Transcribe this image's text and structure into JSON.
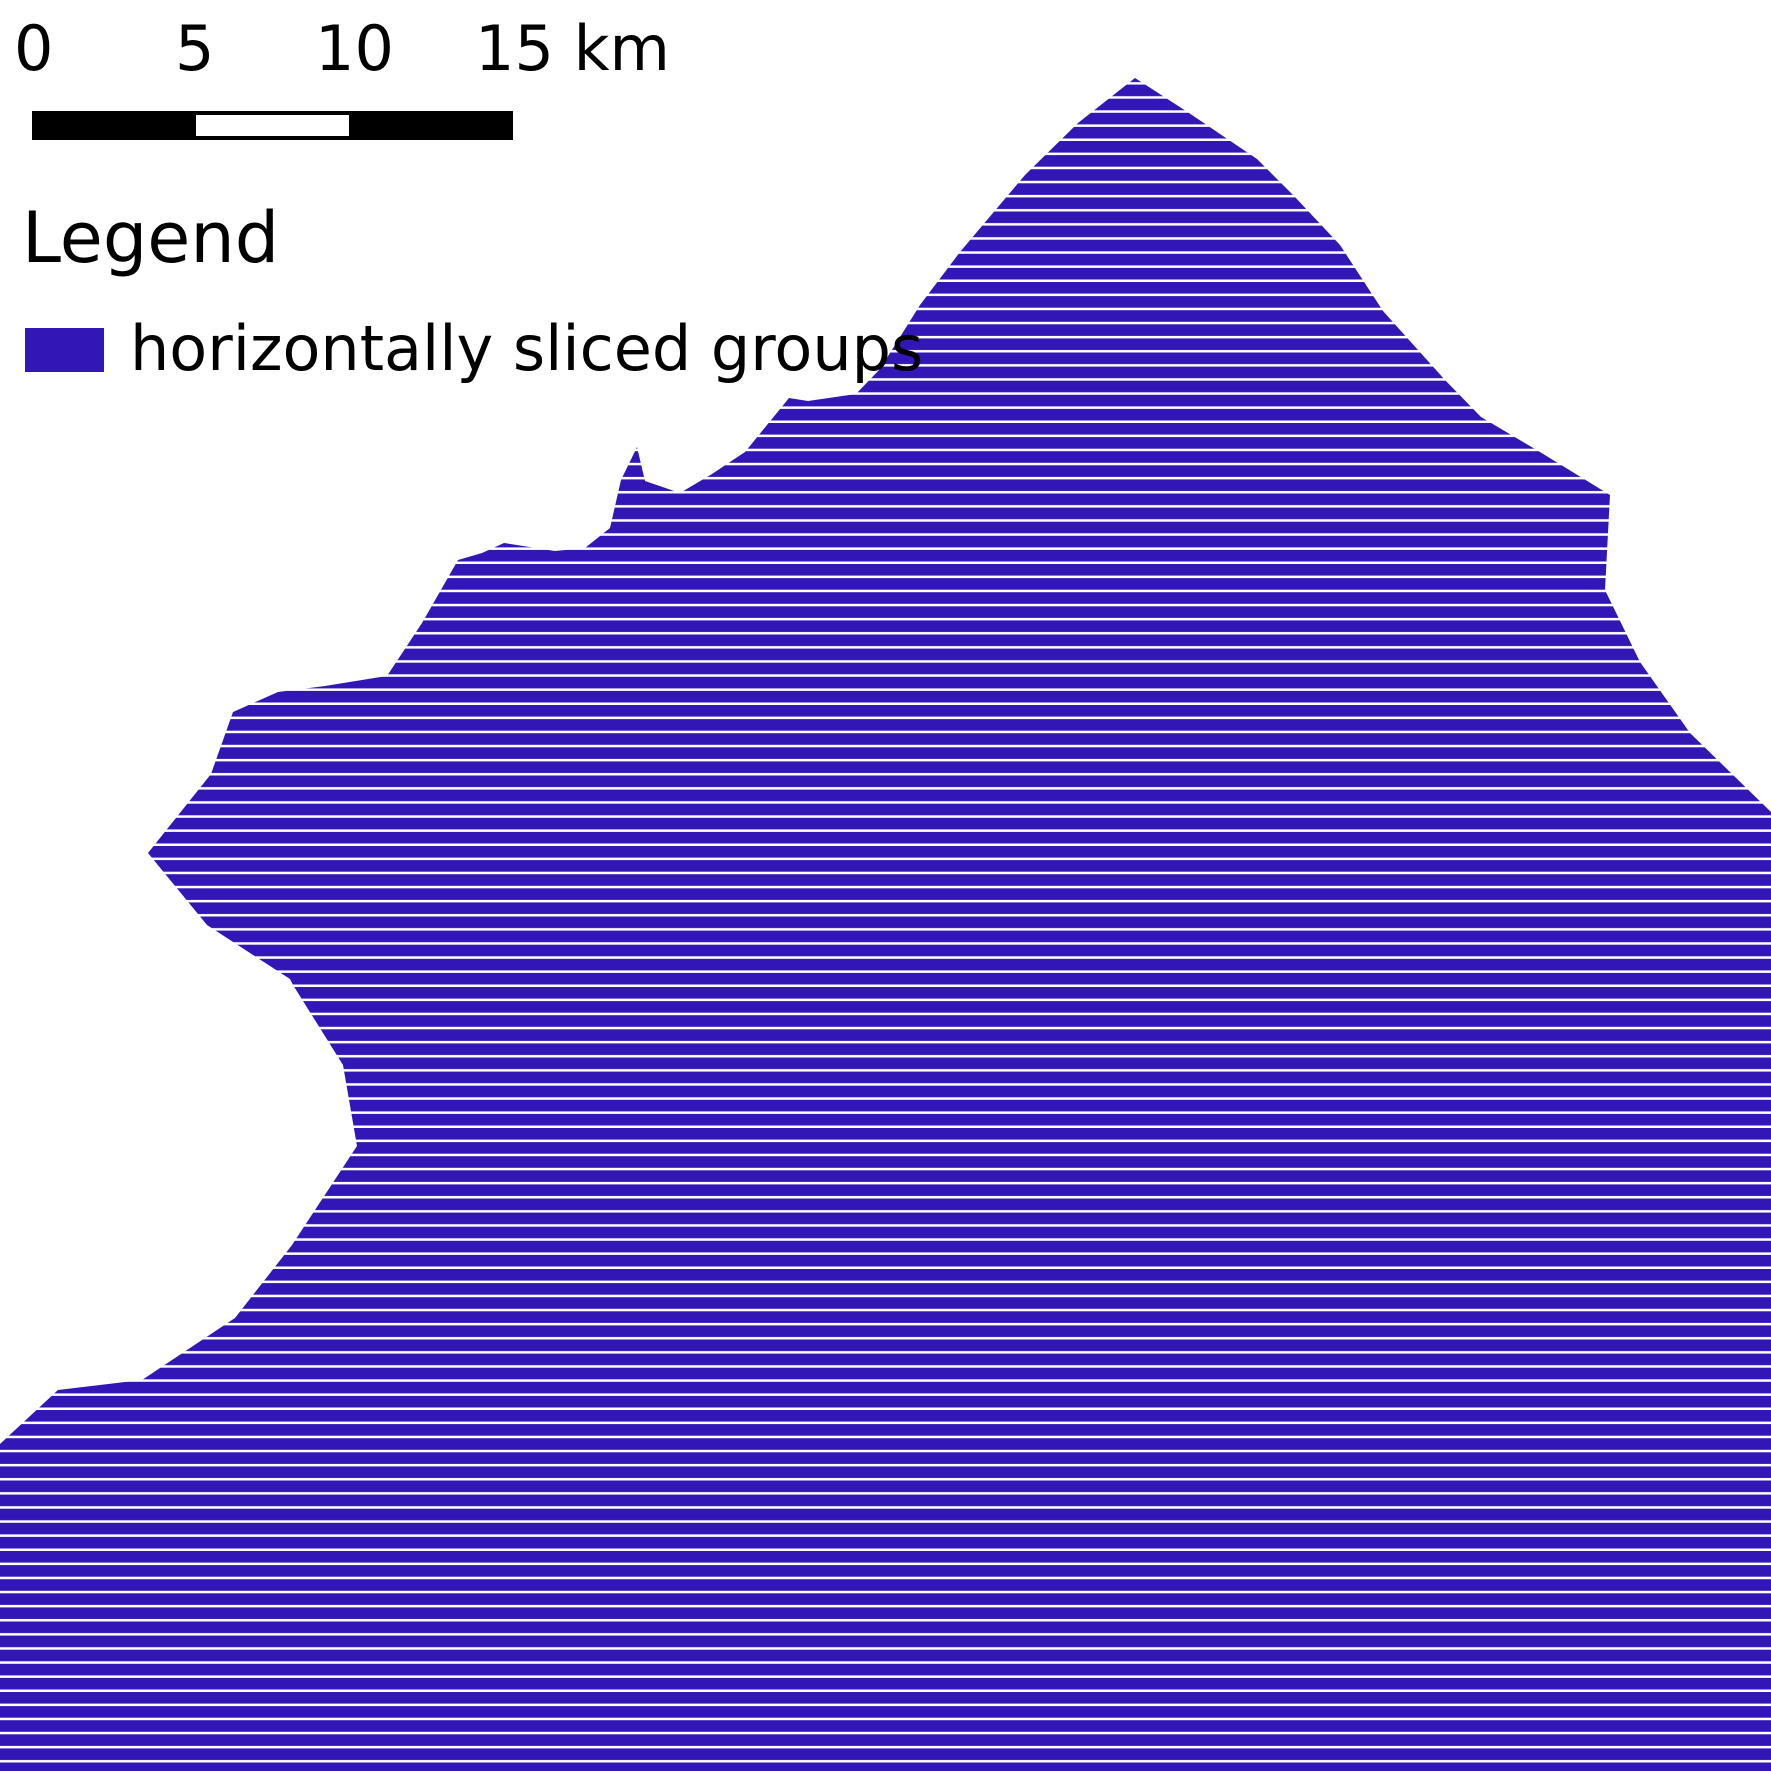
{
  "map": {
    "fill_color": "#3217B6",
    "stripe_color": "#FFFFFF",
    "pattern": "horizontal-lines"
  },
  "scale_bar": {
    "labels": [
      "0",
      "5",
      "10",
      "15 km"
    ],
    "segment_colors": [
      "#000000",
      "#FFFFFF",
      "#000000"
    ]
  },
  "legend": {
    "title": "Legend",
    "items": [
      {
        "label": "horizontally sliced groups",
        "color": "#3217B6"
      }
    ]
  }
}
